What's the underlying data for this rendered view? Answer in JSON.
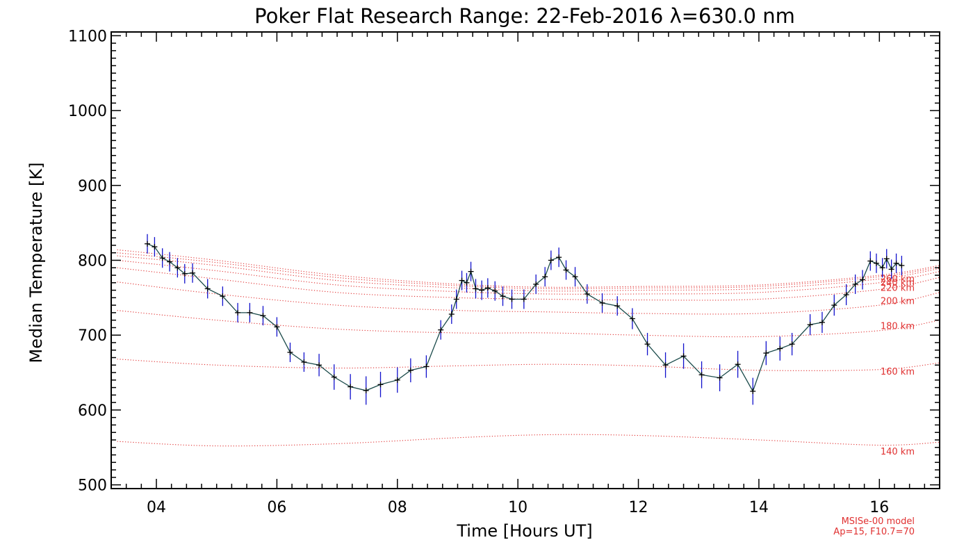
{
  "chart_data": {
    "type": "line",
    "title": "Poker Flat Research Range: 22-Feb-2016 λ=630.0 nm",
    "xlabel": "Time [Hours UT]",
    "ylabel": "Median Temperature [K]",
    "xlim": [
      3.25,
      17.0
    ],
    "ylim": [
      495,
      1105
    ],
    "xticks": [
      4,
      6,
      8,
      10,
      12,
      14,
      16
    ],
    "xtick_labels": [
      "04",
      "06",
      "08",
      "10",
      "12",
      "14",
      "16"
    ],
    "yticks": [
      500,
      600,
      700,
      800,
      900,
      1000,
      1100
    ],
    "ytick_labels": [
      "500",
      "600",
      "700",
      "800",
      "900",
      "1000",
      "1100"
    ],
    "grid": false,
    "colors": {
      "data_line": "#1a4a4a",
      "error_bars": "#1010cc",
      "markers": "#000000",
      "model_curves": "#e03030"
    },
    "series": [
      {
        "x": [
          3.85,
          3.97,
          4.1,
          4.22,
          4.35,
          4.47,
          4.6,
          4.85,
          5.1,
          5.35,
          5.55,
          5.77,
          6.0,
          6.22,
          6.45,
          6.7,
          6.95,
          7.22,
          7.48,
          7.72,
          8.0,
          8.22,
          8.48,
          8.72,
          8.9,
          8.98,
          9.07,
          9.15,
          9.22,
          9.3,
          9.4,
          9.5,
          9.62,
          9.75,
          9.9,
          10.1,
          10.3,
          10.45,
          10.55,
          10.68,
          10.8,
          10.95,
          11.15,
          11.4,
          11.65,
          11.9,
          12.15,
          12.45,
          12.75,
          13.05,
          13.35,
          13.65,
          13.9,
          14.12,
          14.35,
          14.55,
          14.85,
          15.05,
          15.25,
          15.45,
          15.6,
          15.72,
          15.85,
          15.95,
          16.05,
          16.12,
          16.2,
          16.28,
          16.37
        ],
        "y": [
          822,
          818,
          803,
          798,
          790,
          782,
          783,
          762,
          752,
          730,
          730,
          726,
          711,
          677,
          664,
          660,
          644,
          631,
          626,
          634,
          640,
          653,
          658,
          707,
          728,
          748,
          773,
          770,
          785,
          762,
          760,
          763,
          759,
          752,
          748,
          748,
          768,
          778,
          800,
          804,
          787,
          778,
          755,
          743,
          739,
          722,
          688,
          660,
          672,
          647,
          643,
          661,
          625,
          676,
          682,
          688,
          714,
          717,
          740,
          754,
          768,
          774,
          799,
          796,
          790,
          802,
          788,
          796,
          793
        ],
        "err": [
          13,
          13,
          13,
          13,
          13,
          13,
          13,
          13,
          13,
          13,
          13,
          13,
          13,
          13,
          13,
          15,
          17,
          17,
          19,
          17,
          17,
          16,
          15,
          13,
          13,
          13,
          13,
          13,
          13,
          13,
          13,
          13,
          13,
          13,
          13,
          13,
          13,
          13,
          13,
          13,
          13,
          13,
          13,
          13,
          13,
          14,
          15,
          17,
          17,
          18,
          18,
          18,
          18,
          16,
          16,
          15,
          14,
          14,
          14,
          14,
          13,
          13,
          13,
          13,
          13,
          13,
          13,
          13,
          13
        ]
      }
    ],
    "model": {
      "note_line1": "MSISe-00 model",
      "note_line2": "Ap=15, F10.7=70",
      "curves": [
        {
          "label": "140 km",
          "x": [
            3.35,
            5,
            7,
            9,
            10.5,
            12,
            14,
            16,
            17
          ],
          "y": [
            558,
            552,
            555,
            563,
            567,
            566,
            560,
            553,
            557
          ]
        },
        {
          "label": "160 km",
          "x": [
            3.35,
            5,
            7,
            9,
            10.5,
            12,
            14,
            16,
            17
          ],
          "y": [
            668,
            660,
            656,
            659,
            661,
            659,
            653,
            654,
            663
          ]
        },
        {
          "label": "180 km",
          "x": [
            3.35,
            5,
            7,
            9,
            10.5,
            12,
            14,
            16,
            17
          ],
          "y": [
            733,
            720,
            708,
            703,
            703,
            700,
            698,
            706,
            720
          ]
        },
        {
          "label": "200 km",
          "x": [
            3.35,
            5,
            7,
            9,
            10.5,
            12,
            14,
            16,
            17
          ],
          "y": [
            771,
            755,
            740,
            733,
            731,
            729,
            729,
            740,
            757
          ]
        },
        {
          "label": "220 km",
          "x": [
            3.35,
            5,
            7,
            9,
            10.5,
            12,
            14,
            16,
            17
          ],
          "y": [
            790,
            775,
            757,
            750,
            748,
            747,
            748,
            761,
            777
          ]
        },
        {
          "label": "240 km",
          "x": [
            3.35,
            5,
            7,
            9,
            10.5,
            12,
            14,
            16,
            17
          ],
          "y": [
            800,
            786,
            767,
            758,
            755,
            755,
            757,
            770,
            785
          ]
        },
        {
          "label": "260 km",
          "x": [
            3.35,
            5,
            7,
            9,
            10.5,
            12,
            14,
            16,
            17
          ],
          "y": [
            806,
            793,
            773,
            763,
            759,
            760,
            762,
            775,
            789
          ]
        },
        {
          "label": "",
          "x": [
            3.35,
            5,
            7,
            9,
            10.5,
            12,
            14,
            16,
            17
          ],
          "y": [
            810,
            797,
            777,
            766,
            762,
            763,
            765,
            778,
            791
          ]
        },
        {
          "label": "",
          "x": [
            3.35,
            5,
            7,
            9,
            10.5,
            12,
            14,
            16,
            17
          ],
          "y": [
            814,
            800,
            780,
            768,
            764,
            765,
            767,
            780,
            793
          ]
        }
      ],
      "label_positions_km_y": {
        "140 km": 544,
        "160 km": 651,
        "180 km": 712,
        "200 km": 745,
        "220 km": 763,
        "240 km": 770,
        "260 km": 775
      }
    }
  }
}
